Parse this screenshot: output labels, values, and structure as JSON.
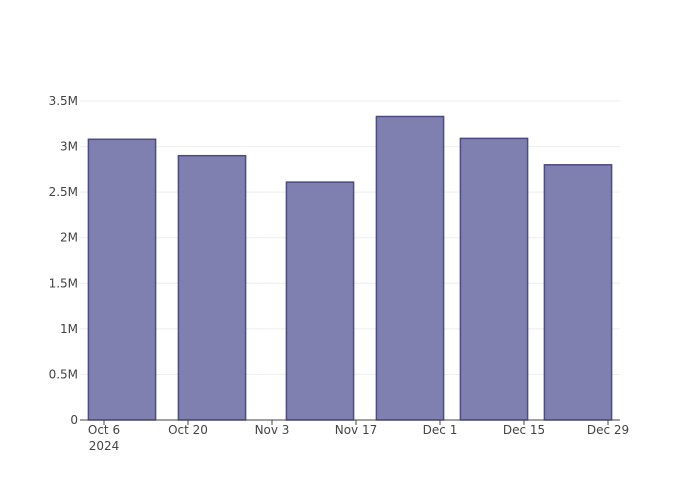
{
  "chart_data": {
    "type": "bar",
    "x": [
      "2024-10-09",
      "2024-10-24",
      "2024-11-11",
      "2024-11-26",
      "2024-12-10",
      "2024-12-24"
    ],
    "values": [
      3080000,
      2900000,
      2610000,
      3330000,
      3090000,
      2800000
    ],
    "color": "#7f7fb0",
    "edge_color": "#4b4b85",
    "xlim": [
      "2024-10-02",
      "2024-12-31"
    ],
    "xticks": [
      {
        "value": "2024-10-06",
        "label": "Oct 6"
      },
      {
        "value": "2024-10-20",
        "label": "Oct 20"
      },
      {
        "value": "2024-11-03",
        "label": "Nov 3"
      },
      {
        "value": "2024-11-17",
        "label": "Nov 17"
      },
      {
        "value": "2024-12-01",
        "label": "Dec 1"
      },
      {
        "value": "2024-12-15",
        "label": "Dec 15"
      },
      {
        "value": "2024-12-29",
        "label": "Dec 29"
      }
    ],
    "x_year_label": "2024",
    "ylim": [
      0,
      3500000
    ],
    "yticks": [
      0,
      {
        "value": 500000,
        "label": "0.5M"
      },
      {
        "value": 1000000,
        "label": "1M"
      },
      {
        "value": 1500000,
        "label": "1.5M"
      },
      {
        "value": 2000000,
        "label": "2M"
      },
      {
        "value": 2500000,
        "label": "2.5M"
      },
      {
        "value": 3000000,
        "label": "3M"
      },
      {
        "value": 3500000,
        "label": "3.5M"
      }
    ],
    "grid": true
  }
}
